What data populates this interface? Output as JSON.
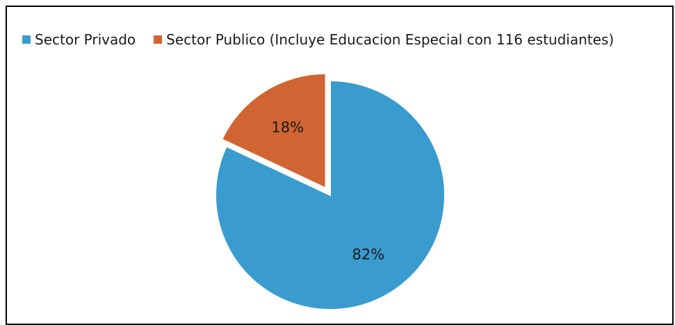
{
  "chart_data": {
    "type": "pie",
    "title": "",
    "legend_position": "top-left",
    "series": [
      {
        "name": "Sector Privado",
        "value": 82,
        "label": "82%",
        "color": "#3a9bcf",
        "exploded": false
      },
      {
        "name": "Sector Publico (Incluye Educacion Especial con 116 estudiantes)",
        "value": 18,
        "label": "18%",
        "color": "#d06432",
        "exploded": true
      }
    ]
  }
}
